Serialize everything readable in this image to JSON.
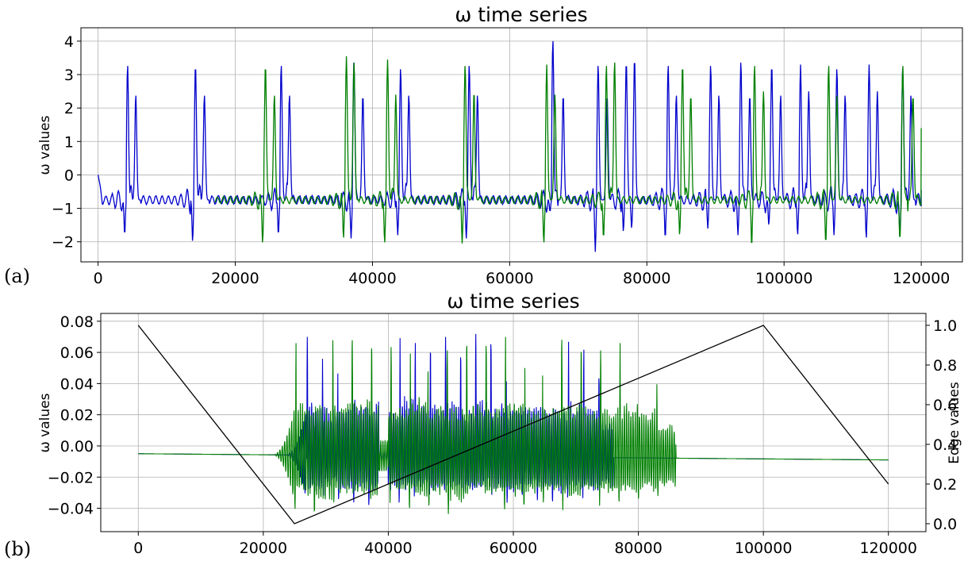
{
  "figure": {
    "panel_labels": [
      "(a)",
      "(b)"
    ]
  },
  "chart_data": [
    {
      "type": "line",
      "title": "ω time series",
      "ylabel": "ω values",
      "xlabel": "",
      "xlim": [
        -2500,
        126000
      ],
      "ylim": [
        -2.6,
        4.4
      ],
      "xticks": [
        0,
        20000,
        40000,
        60000,
        80000,
        100000,
        120000
      ],
      "yticks": [
        -2,
        -1,
        0,
        1,
        2,
        3,
        4
      ],
      "grid": true,
      "legend": "none",
      "series": [
        {
          "color": "#0000cc",
          "baseline": -0.75,
          "start_value": 0,
          "x_end": 120000,
          "end_value": -0.45,
          "oscillation_amplitude": 0.55,
          "spikes": [
            {
              "x": 4300,
              "peak": 3.3,
              "trough": -1.8
            },
            {
              "x": 5500,
              "peak": 2.4,
              "trough": -0.7
            },
            {
              "x": 14200,
              "peak": 3.3,
              "trough": -2.0
            },
            {
              "x": 15500,
              "peak": 2.4,
              "trough": -0.7
            },
            {
              "x": 26700,
              "peak": 3.3,
              "trough": -1.8
            },
            {
              "x": 27900,
              "peak": 2.4,
              "trough": -0.7
            },
            {
              "x": 37300,
              "peak": 3.4,
              "trough": -1.9
            },
            {
              "x": 38600,
              "peak": 2.4,
              "trough": -0.7
            },
            {
              "x": 44100,
              "peak": 3.2,
              "trough": -1.8
            },
            {
              "x": 45300,
              "peak": 2.4,
              "trough": -0.7
            },
            {
              "x": 54100,
              "peak": 3.3,
              "trough": -1.9
            },
            {
              "x": 55300,
              "peak": 2.4,
              "trough": -0.7
            },
            {
              "x": 66300,
              "peak": 4.05,
              "trough": -1.1
            },
            {
              "x": 67800,
              "peak": 2.4,
              "trough": -0.7
            },
            {
              "x": 72900,
              "peak": 3.3,
              "trough": -2.3
            },
            {
              "x": 74200,
              "peak": 2.4,
              "trough": -0.7
            },
            {
              "x": 77000,
              "peak": 3.4,
              "trough": -1.7
            },
            {
              "x": 78200,
              "peak": 3.5,
              "trough": -1.6
            },
            {
              "x": 83100,
              "peak": 3.3,
              "trough": -1.9
            },
            {
              "x": 84300,
              "peak": 2.4,
              "trough": -0.7
            },
            {
              "x": 89300,
              "peak": 3.3,
              "trough": -1.6
            },
            {
              "x": 90500,
              "peak": 2.4,
              "trough": -0.7
            },
            {
              "x": 93700,
              "peak": 3.4,
              "trough": -1.8
            },
            {
              "x": 95000,
              "peak": 2.4,
              "trough": -0.7
            },
            {
              "x": 98200,
              "peak": 3.3,
              "trough": -1.5
            },
            {
              "x": 99500,
              "peak": 2.4,
              "trough": -0.7
            },
            {
              "x": 102400,
              "peak": 3.3,
              "trough": -1.8
            },
            {
              "x": 103600,
              "peak": 2.5,
              "trough": -0.7
            },
            {
              "x": 107700,
              "peak": 3.2,
              "trough": -1.8
            },
            {
              "x": 108900,
              "peak": 2.4,
              "trough": -0.7
            },
            {
              "x": 112400,
              "peak": 3.3,
              "trough": -1.9
            },
            {
              "x": 113600,
              "peak": 2.5,
              "trough": -0.7
            },
            {
              "x": 117300,
              "peak": 3.2,
              "trough": -1.8
            },
            {
              "x": 118500,
              "peak": 2.4,
              "trough": -0.7
            }
          ]
        },
        {
          "color": "#007f00",
          "baseline": -0.75,
          "start_value": -0.7,
          "x_start": 17000,
          "x_end": 120000,
          "end_value": 1.4,
          "oscillation_amplitude": 0.45,
          "spikes": [
            {
              "x": 15900,
              "peak": 2.45,
              "trough": -0.7
            },
            {
              "x": 24400,
              "peak": 3.3,
              "trough": -2.05
            },
            {
              "x": 25700,
              "peak": 2.4,
              "trough": -0.7
            },
            {
              "x": 36200,
              "peak": 3.55,
              "trough": -1.9
            },
            {
              "x": 37300,
              "peak": 3.4,
              "trough": -0.7
            },
            {
              "x": 42200,
              "peak": 3.45,
              "trough": -2.05
            },
            {
              "x": 43400,
              "peak": 2.4,
              "trough": -0.7
            },
            {
              "x": 53500,
              "peak": 3.3,
              "trough": -2.05
            },
            {
              "x": 54800,
              "peak": 2.5,
              "trough": -0.7
            },
            {
              "x": 65400,
              "peak": 3.3,
              "trough": -2.05
            },
            {
              "x": 66600,
              "peak": 2.4,
              "trough": -0.7
            },
            {
              "x": 74100,
              "peak": 3.3,
              "trough": -1.9
            },
            {
              "x": 75300,
              "peak": 3.4,
              "trough": -0.7
            },
            {
              "x": 85200,
              "peak": 3.3,
              "trough": -1.8
            },
            {
              "x": 86400,
              "peak": 2.4,
              "trough": -0.7
            },
            {
              "x": 95700,
              "peak": 3.3,
              "trough": -2.15
            },
            {
              "x": 97000,
              "peak": 2.5,
              "trough": -0.7
            },
            {
              "x": 106500,
              "peak": 3.3,
              "trough": -2.05
            },
            {
              "x": 107700,
              "peak": 2.4,
              "trough": -0.7
            },
            {
              "x": 117300,
              "peak": 3.3,
              "trough": -1.95
            },
            {
              "x": 118800,
              "peak": 2.4,
              "trough": -0.7
            }
          ]
        }
      ]
    },
    {
      "type": "line",
      "title": "ω time series",
      "ylabel": "ω values",
      "y2label": "Edge values",
      "xlabel": "",
      "xlim": [
        -6000,
        126000
      ],
      "ylim": [
        -0.055,
        0.085
      ],
      "y2lim": [
        -0.04,
        1.06
      ],
      "xticks": [
        0,
        20000,
        40000,
        60000,
        80000,
        100000,
        120000
      ],
      "yticks": [
        -0.04,
        -0.02,
        0.0,
        0.02,
        0.04,
        0.06,
        0.08
      ],
      "y2ticks": [
        0.0,
        0.2,
        0.4,
        0.6,
        0.8,
        1.0
      ],
      "grid": true,
      "legend": "none",
      "series": [
        {
          "color": "#0000cc",
          "baseline_start": -0.005,
          "baseline_end": -0.009,
          "burst_start": 27000,
          "burst_end": 76000,
          "burst_peaks": [
            0.07,
            0.06,
            0.065,
            0.07,
            0.068,
            0.062,
            0.075,
            0.066,
            0.064,
            0.07,
            0.06,
            0.072,
            0.068,
            0.065,
            0.07,
            0.066,
            0.064,
            0.07,
            0.062,
            0.045
          ],
          "burst_troughs": [
            -0.04,
            -0.035,
            -0.038,
            -0.04,
            -0.042,
            -0.038,
            -0.04,
            -0.036,
            -0.04,
            -0.038,
            -0.04,
            -0.036,
            -0.038,
            -0.04,
            -0.035,
            -0.038,
            -0.04,
            -0.036,
            -0.038,
            -0.035
          ]
        },
        {
          "color": "#007f00",
          "baseline_start": -0.005,
          "baseline_end": -0.009,
          "burst_start": 25000,
          "burst_end": 86000,
          "burst_peaks": [
            0.066,
            0.062,
            0.068,
            0.07,
            0.066,
            0.064,
            0.078,
            0.064,
            0.062,
            0.068,
            0.066,
            0.07,
            0.062,
            0.066,
            0.07,
            0.064,
            0.062,
            0.066,
            0.06,
            0.04
          ],
          "burst_troughs": [
            -0.045,
            -0.048,
            -0.04,
            -0.042,
            -0.045,
            -0.04,
            -0.045,
            -0.043,
            -0.048,
            -0.04,
            -0.042,
            -0.045,
            -0.043,
            -0.04,
            -0.045,
            -0.04,
            -0.042,
            -0.04,
            -0.038,
            -0.035
          ]
        },
        {
          "name": "Edge values",
          "axis": "right",
          "color": "#000000",
          "points": [
            [
              0,
              1.0
            ],
            [
              25000,
              0.0
            ],
            [
              100000,
              1.0
            ],
            [
              120000,
              0.2
            ]
          ]
        }
      ]
    }
  ]
}
